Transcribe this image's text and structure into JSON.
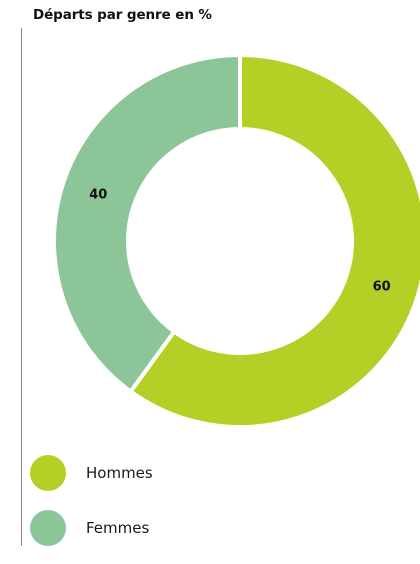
{
  "title": "Départs par genre en %",
  "chart_data": {
    "type": "pie",
    "title": "Départs par genre en %",
    "donut": true,
    "categories": [
      "Hommes",
      "Femmes"
    ],
    "values": [
      60,
      40
    ],
    "data_labels": [
      "60",
      "40"
    ],
    "colors": [
      "#b5cf27",
      "#8cc698"
    ],
    "legend_position": "bottom-left"
  },
  "legend": {
    "items": [
      {
        "label": "Hommes",
        "color": "#b5cf27"
      },
      {
        "label": "Femmes",
        "color": "#8cc698"
      }
    ]
  }
}
